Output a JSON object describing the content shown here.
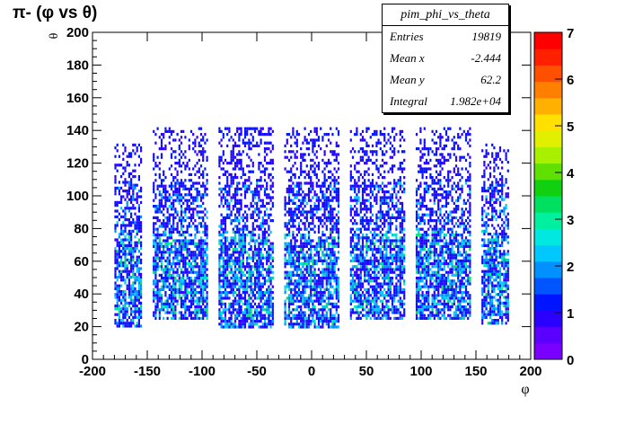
{
  "title": "π- (φ vs θ)",
  "stats_box": {
    "name": "pim_phi_vs_theta",
    "rows": [
      {
        "label": "Entries",
        "value": "19819"
      },
      {
        "label": "Mean x",
        "value": "-2.444"
      },
      {
        "label": "Mean y",
        "value": "62.2"
      },
      {
        "label": "Integral",
        "value": "1.982e+04"
      }
    ]
  },
  "chart_data": {
    "type": "heatmap",
    "title": "π- (φ vs θ)",
    "xlabel": "φ",
    "ylabel": "θ",
    "xlim": [
      -200,
      200
    ],
    "ylim": [
      0,
      200
    ],
    "x_ticks": [
      -200,
      -150,
      -100,
      -50,
      0,
      50,
      100,
      150,
      200
    ],
    "y_ticks": [
      0,
      20,
      40,
      60,
      80,
      100,
      120,
      140,
      160,
      180,
      200
    ],
    "z_range": [
      0,
      7
    ],
    "z_ticks": [
      0,
      1,
      2,
      3,
      4,
      5,
      6,
      7
    ],
    "palette": [
      "#7a00ff",
      "#5a00ff",
      "#2a00ff",
      "#0015ff",
      "#0055ff",
      "#0090ff",
      "#00c8ff",
      "#00e8e0",
      "#00f0a0",
      "#00e060",
      "#10d010",
      "#60e000",
      "#a8f000",
      "#e0f000",
      "#ffe000",
      "#ffb000",
      "#ff8000",
      "#ff5000",
      "#ff2000",
      "#ff0000"
    ],
    "sectors": [
      {
        "phi_min": -180,
        "phi_max": -155,
        "theta_min": 20,
        "theta_max": 132
      },
      {
        "phi_min": -145,
        "phi_max": -95,
        "theta_min": 25,
        "theta_max": 142
      },
      {
        "phi_min": -85,
        "phi_max": -35,
        "theta_min": 20,
        "theta_max": 142
      },
      {
        "phi_min": -25,
        "phi_max": 25,
        "theta_min": 20,
        "theta_max": 142
      },
      {
        "phi_min": 35,
        "phi_max": 85,
        "theta_min": 25,
        "theta_max": 142
      },
      {
        "phi_min": 95,
        "phi_max": 145,
        "theta_min": 25,
        "theta_max": 142
      },
      {
        "phi_min": 155,
        "phi_max": 180,
        "theta_min": 22,
        "theta_max": 132
      }
    ]
  }
}
